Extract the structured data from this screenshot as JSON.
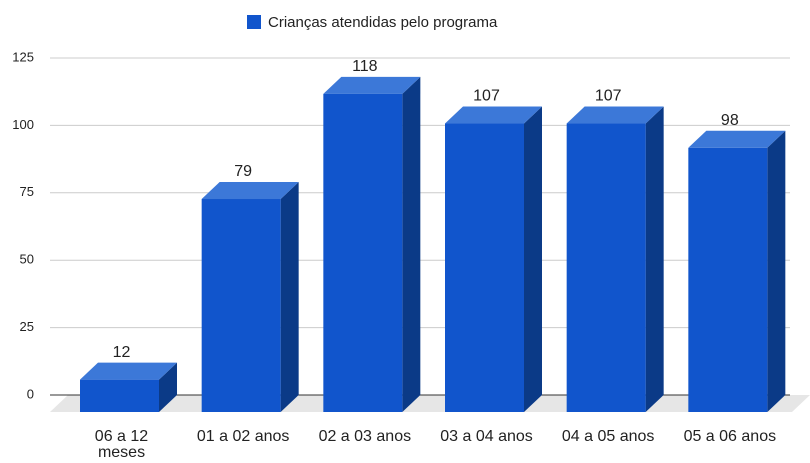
{
  "chart_data": {
    "type": "bar3d",
    "categories": [
      "06 a 12 meses",
      "01 a 02 anos",
      "02 a 03 anos",
      "03 a 04 anos",
      "04 a 05 anos",
      "05 a 06 anos"
    ],
    "series": [
      {
        "name": "Crianças atendidas pelo programa",
        "color": "#1155cc",
        "values": [
          12,
          79,
          118,
          107,
          107,
          98
        ]
      }
    ],
    "ylim": [
      0,
      125
    ],
    "yticks": [
      0,
      25,
      50,
      75,
      100,
      125
    ],
    "grid": true,
    "legend": "top"
  }
}
